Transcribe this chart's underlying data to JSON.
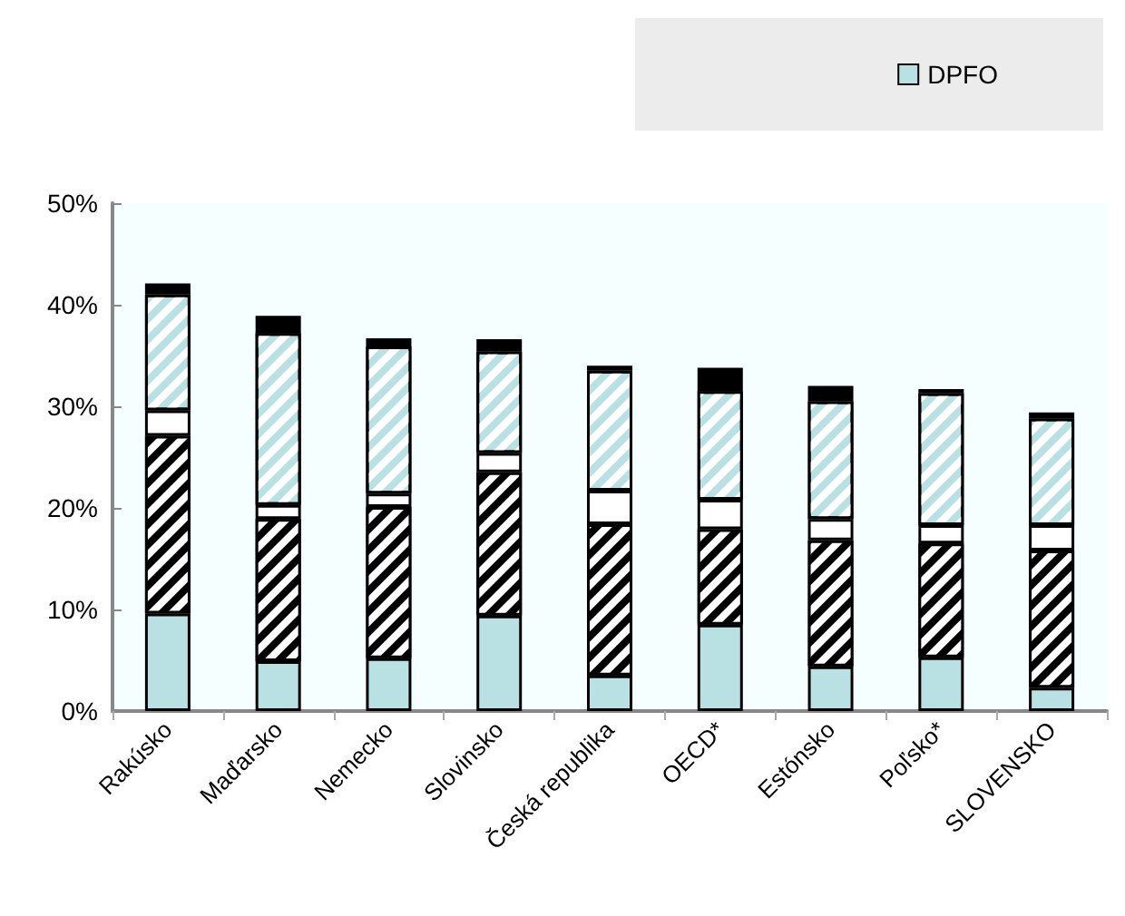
{
  "chart_data": {
    "type": "bar",
    "stacked": true,
    "legend": "top right",
    "grid": false,
    "categories": [
      "Rakúsko",
      "Maďarsko",
      "Nemecko",
      "Slovinsko",
      "Česká republika",
      "OECD*",
      "Estónsko",
      "Poľsko*",
      "SLOVENSKO"
    ],
    "series": [
      {
        "name": "DPFO",
        "color": "#b9e1e3",
        "values": [
          9.6,
          4.9,
          5.2,
          9.4,
          3.5,
          8.5,
          4.4,
          5.3,
          2.3
        ]
      },
      {
        "color": "#000000",
        "values": [
          17.5,
          14.0,
          14.9,
          14.1,
          14.9,
          9.4,
          12.4,
          11.2,
          13.5
        ]
      },
      {
        "color": "#ffffff",
        "values": [
          2.5,
          1.4,
          1.3,
          1.9,
          3.3,
          2.9,
          2.1,
          1.8,
          2.5
        ]
      },
      {
        "color": "#b9e1e3",
        "values": [
          11.4,
          16.9,
          14.5,
          10.0,
          11.8,
          10.7,
          11.6,
          13.0,
          10.5
        ]
      },
      {
        "color": "#000000",
        "values": [
          1.1,
          1.7,
          0.8,
          1.2,
          0.5,
          2.3,
          1.5,
          0.4,
          0.6
        ]
      }
    ],
    "ylim": [
      0,
      50
    ],
    "yticks": [
      {
        "value": 0,
        "label": "0%"
      },
      {
        "value": 10,
        "label": "10%"
      },
      {
        "value": 20,
        "label": "20%"
      },
      {
        "value": 30,
        "label": "30%"
      },
      {
        "value": 40,
        "label": "40%"
      },
      {
        "value": 50,
        "label": "50%"
      }
    ]
  }
}
